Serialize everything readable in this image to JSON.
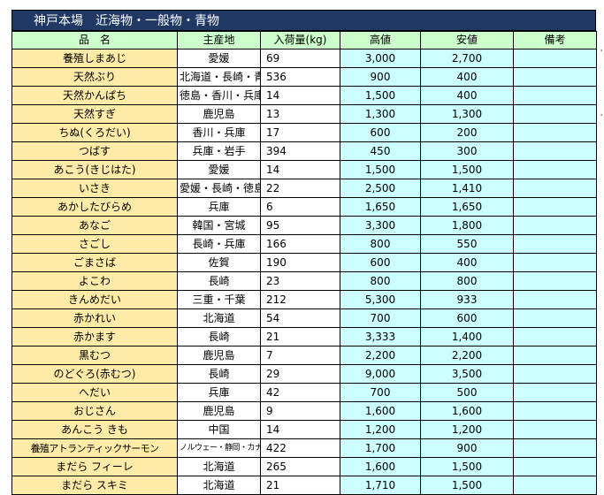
{
  "title": "神戸本場　近海物・一般物・青物",
  "columns": [
    "品　名",
    "主産地",
    "入荷量(kg)",
    "高値",
    "安値",
    "備考"
  ],
  "rows": [
    {
      "name": "養殖しまあじ",
      "origin": "愛媛",
      "qty": "69",
      "high": "3,000",
      "low": "2,700",
      "note": ""
    },
    {
      "name": "天然ぶり",
      "origin": "北海道・長崎・青森",
      "qty": "536",
      "high": "900",
      "low": "400",
      "note": ""
    },
    {
      "name": "天然かんぱち",
      "origin": "徳島・香川・兵庫",
      "qty": "14",
      "high": "1,500",
      "low": "400",
      "note": ""
    },
    {
      "name": "天然すぎ",
      "origin": "鹿児島",
      "qty": "13",
      "high": "1,300",
      "low": "1,300",
      "note": ""
    },
    {
      "name": "ちぬ(くろだい)",
      "origin": "香川・兵庫",
      "qty": "17",
      "high": "600",
      "low": "200",
      "note": ""
    },
    {
      "name": "つばす",
      "origin": "兵庫・岩手",
      "qty": "394",
      "high": "450",
      "low": "300",
      "note": ""
    },
    {
      "name": "あこう(きじはた)",
      "origin": "愛媛",
      "qty": "14",
      "high": "1,500",
      "low": "1,500",
      "note": ""
    },
    {
      "name": "いさき",
      "origin": "愛媛・長崎・徳島",
      "qty": "22",
      "high": "2,500",
      "low": "1,410",
      "note": ""
    },
    {
      "name": "あかしたびらめ",
      "origin": "兵庫",
      "qty": "6",
      "high": "1,650",
      "low": "1,650",
      "note": ""
    },
    {
      "name": "あなご",
      "origin": "韓国・宮城",
      "qty": "95",
      "high": "3,300",
      "low": "1,800",
      "note": ""
    },
    {
      "name": "さごし",
      "origin": "長崎・兵庫",
      "qty": "166",
      "high": "800",
      "low": "550",
      "note": ""
    },
    {
      "name": "ごまさば",
      "origin": "佐賀",
      "qty": "190",
      "high": "600",
      "low": "400",
      "note": ""
    },
    {
      "name": "よこわ",
      "origin": "長崎",
      "qty": "23",
      "high": "800",
      "low": "800",
      "note": ""
    },
    {
      "name": "きんめだい",
      "origin": "三重・千葉",
      "qty": "212",
      "high": "5,300",
      "low": "933",
      "note": ""
    },
    {
      "name": "赤かれい",
      "origin": "北海道",
      "qty": "54",
      "high": "700",
      "low": "600",
      "note": ""
    },
    {
      "name": "赤かます",
      "origin": "長崎",
      "qty": "21",
      "high": "3,333",
      "low": "1,400",
      "note": ""
    },
    {
      "name": "黒むつ",
      "origin": "鹿児島",
      "qty": "7",
      "high": "2,200",
      "low": "2,200",
      "note": ""
    },
    {
      "name": "のどぐろ(赤むつ)",
      "origin": "長崎",
      "qty": "29",
      "high": "9,000",
      "low": "3,500",
      "note": ""
    },
    {
      "name": "へだい",
      "origin": "兵庫",
      "qty": "42",
      "high": "700",
      "low": "500",
      "note": ""
    },
    {
      "name": "おじさん",
      "origin": "鹿児島",
      "qty": "9",
      "high": "1,600",
      "low": "1,600",
      "note": ""
    },
    {
      "name": "あんこう きも",
      "origin": "中国",
      "qty": "14",
      "high": "1,200",
      "low": "1,200",
      "note": ""
    },
    {
      "name": "養殖アトランティックサーモン",
      "origin": "ノルウェー・静岡・カナダ他",
      "qty": "422",
      "high": "1,700",
      "low": "900",
      "note": ""
    },
    {
      "name": "まだら フィーレ",
      "origin": "北海道",
      "qty": "265",
      "high": "1,600",
      "low": "1,500",
      "note": ""
    },
    {
      "name": "まだら スキミ",
      "origin": "北海道",
      "qty": "21",
      "high": "1,710",
      "low": "1,500",
      "note": ""
    }
  ]
}
